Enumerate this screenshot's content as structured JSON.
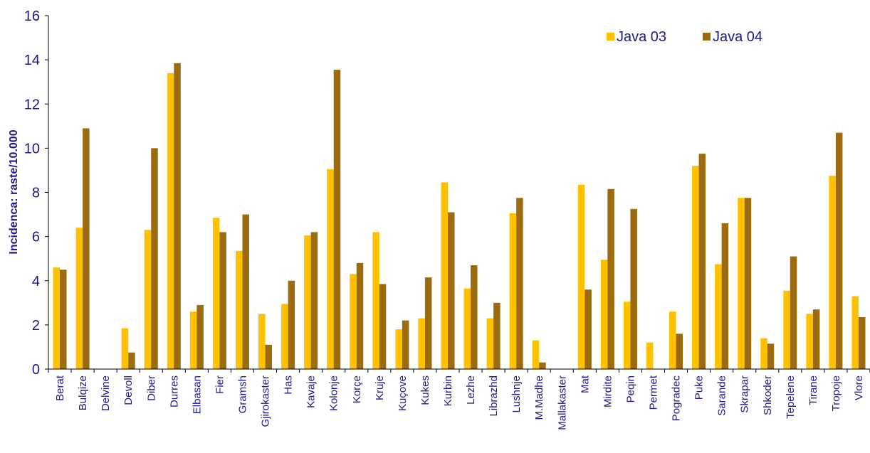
{
  "chart_data": {
    "type": "bar",
    "ylabel": "Incidenca: raste/10.000",
    "xlabel": "",
    "ylim": [
      0,
      16
    ],
    "yticks": [
      "0",
      "2",
      "4",
      "6",
      "8",
      "10",
      "12",
      "14",
      "16"
    ],
    "grid": false,
    "legend_position": "top-right",
    "categories": [
      "Berat",
      "Bulqize",
      "Delvine",
      "Devoll",
      "Diber",
      "Durres",
      "Elbasan",
      "Fier",
      "Gramsh",
      "Gjirokaster",
      "Has",
      "Kavaje",
      "Kolonje",
      "Korçe",
      "Kruje",
      "Kuçove",
      "Kukes",
      "Kurbin",
      "Lezhe",
      "Librazhd",
      "Lushnje",
      "M.Madhe",
      "Mallakaster",
      "Mat",
      "Mirdite",
      "Peqin",
      "Permet",
      "Pogradec",
      "Puke",
      "Sarande",
      "Skrapar",
      "Shkoder",
      "Tepelene",
      "Tirane",
      "Tropoje",
      "Vlore"
    ],
    "series": [
      {
        "name": "Java 03",
        "color": "#ffc000",
        "values": [
          4.6,
          6.4,
          0,
          1.85,
          6.3,
          13.4,
          2.6,
          6.85,
          5.35,
          2.5,
          2.95,
          6.05,
          9.05,
          4.3,
          6.2,
          1.8,
          2.3,
          8.45,
          3.65,
          2.3,
          7.05,
          1.3,
          0,
          8.35,
          4.95,
          3.05,
          1.2,
          2.6,
          9.2,
          4.75,
          7.75,
          1.4,
          3.55,
          2.5,
          8.75,
          3.3
        ]
      },
      {
        "name": "Java 04",
        "color": "#9c6b0f",
        "values": [
          4.5,
          10.9,
          0,
          0.75,
          10.0,
          13.85,
          2.9,
          6.2,
          7.0,
          1.1,
          4.0,
          6.2,
          13.55,
          4.8,
          3.85,
          2.2,
          4.15,
          7.1,
          4.7,
          3.0,
          7.75,
          0.3,
          0,
          3.6,
          8.15,
          7.25,
          0,
          1.6,
          9.75,
          6.6,
          7.75,
          1.15,
          5.1,
          2.7,
          10.7,
          2.35
        ]
      }
    ]
  }
}
